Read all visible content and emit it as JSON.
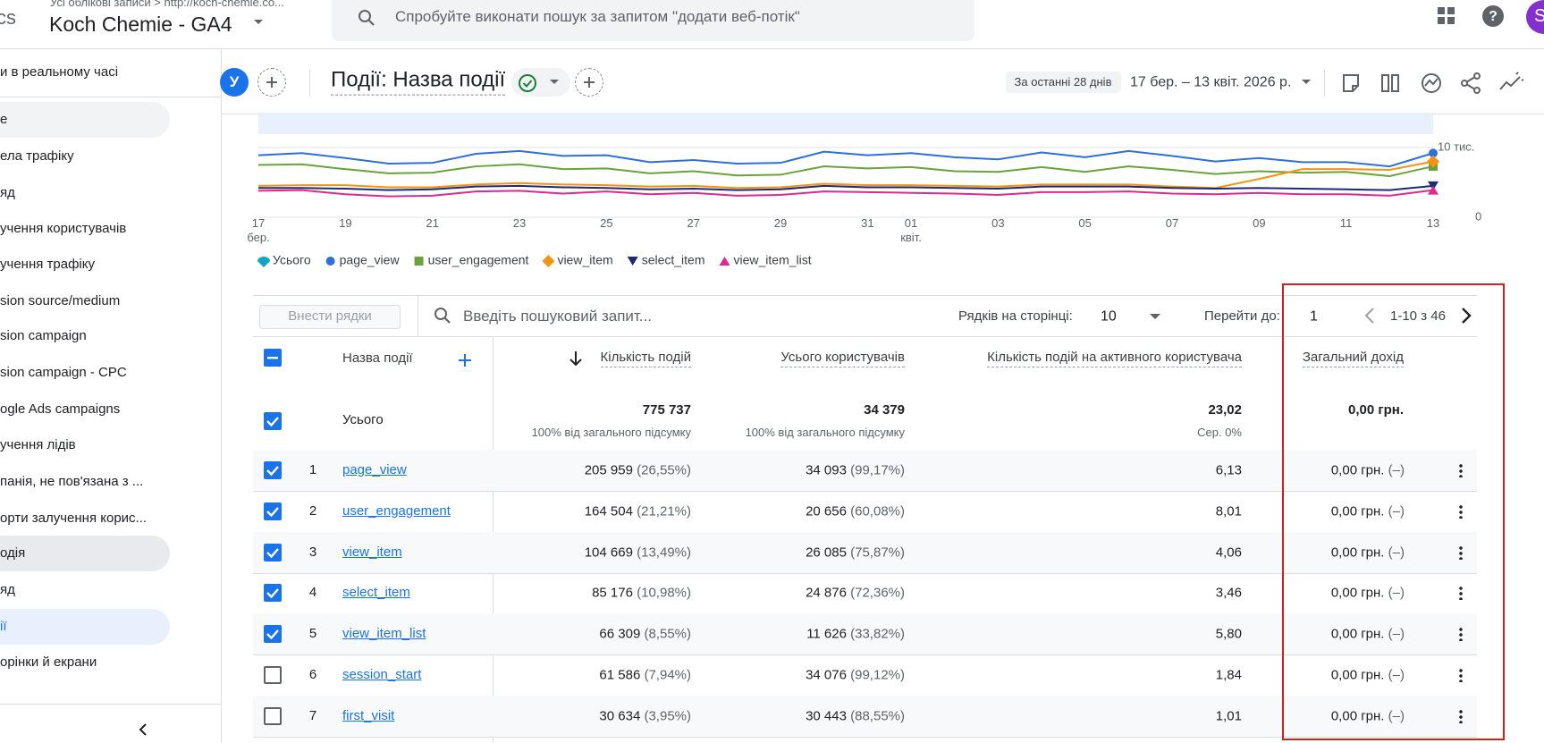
{
  "header": {
    "app_partial": "cs",
    "breadcrumb": "Усі облікові записи > http://koch-chemie.co...",
    "property": "Koch Chemie - GA4",
    "search_placeholder": "Спробуйте виконати пошук за запитом \"додати веб-потік\"",
    "avatar": "S"
  },
  "sidebar": {
    "items": [
      "и в реальному часі",
      "е",
      "ела трафіку",
      "яд",
      "учення користувачів",
      "учення трафіку",
      "sion source/medium",
      "sion campaign",
      "sion campaign - CPC",
      "ogle Ads campaigns",
      "учення лідів",
      "панія, не пов'язана з ...",
      "орти залучення корис...",
      "одія",
      "яд",
      "ії",
      "орінки й екрани"
    ]
  },
  "toolbar": {
    "segment": "У",
    "title": "Події: Назва події",
    "period_label": "За останні 28 днів",
    "period": "17 бер. – 13 квіт. 2026 р."
  },
  "chart_data": {
    "type": "line",
    "categories": [
      "17\nбер.",
      null,
      "19",
      null,
      "21",
      null,
      "23",
      null,
      "25",
      null,
      "27",
      null,
      "29",
      null,
      "31",
      "01\nквіт.",
      null,
      "03",
      null,
      "05",
      null,
      "07",
      null,
      "09",
      null,
      "11",
      null,
      "13"
    ],
    "series": [
      {
        "name": "Усього",
        "color": "#12a4c4",
        "marker": "drop",
        "values": [
          null,
          null,
          null,
          null,
          null,
          null,
          null,
          null,
          null,
          null,
          null,
          null,
          null,
          null,
          null,
          null,
          null,
          null,
          null,
          null,
          null,
          null,
          null,
          null,
          null,
          null,
          null,
          null
        ]
      },
      {
        "name": "page_view",
        "color": "#2f6fdc",
        "marker": "circle",
        "values": [
          8900,
          9200,
          8500,
          7700,
          7800,
          9100,
          9500,
          8800,
          8900,
          7900,
          8200,
          7700,
          7800,
          9400,
          8900,
          9200,
          8600,
          8300,
          9300,
          8600,
          9500,
          8800,
          8000,
          8500,
          7900,
          7900,
          7300,
          9200
        ]
      },
      {
        "name": "user_engagement",
        "color": "#6aa23c",
        "marker": "square",
        "values": [
          7500,
          7600,
          6900,
          6300,
          6400,
          7300,
          7600,
          6900,
          7000,
          6300,
          6600,
          6000,
          6100,
          7300,
          7000,
          7200,
          6600,
          6500,
          7200,
          6500,
          7300,
          6800,
          6200,
          6600,
          6400,
          6500,
          5900,
          7300
        ]
      },
      {
        "name": "view_item",
        "color": "#f29411",
        "marker": "diamond",
        "values": [
          4500,
          4600,
          4600,
          4300,
          4300,
          4700,
          4900,
          4700,
          4600,
          4400,
          4500,
          4200,
          4300,
          4800,
          4600,
          4600,
          4500,
          4400,
          4700,
          4700,
          4700,
          4400,
          4200,
          5500,
          6900,
          6900,
          6800,
          8000
        ]
      },
      {
        "name": "select_item",
        "color": "#1d2a78",
        "marker": "triangle-down",
        "values": [
          4200,
          4200,
          4100,
          3900,
          4000,
          4400,
          4500,
          4300,
          4200,
          4000,
          4100,
          3900,
          4000,
          4500,
          4300,
          4300,
          4200,
          4100,
          4400,
          4400,
          4400,
          4200,
          4100,
          4200,
          4100,
          4000,
          3900,
          4500
        ]
      },
      {
        "name": "view_item_list",
        "color": "#e0288f",
        "marker": "triangle-up",
        "values": [
          3800,
          3900,
          3300,
          3000,
          3100,
          3700,
          3800,
          3400,
          3700,
          3300,
          3500,
          3100,
          3200,
          3700,
          3600,
          3500,
          3400,
          3200,
          3600,
          3600,
          3700,
          3400,
          3300,
          3500,
          3300,
          3300,
          3100,
          3900
        ]
      }
    ],
    "ylim": [
      0,
      15000
    ],
    "yticks": [
      0,
      {
        "value": 10000,
        "label": "10 тис."
      }
    ],
    "grid": true
  },
  "table": {
    "add_rows": "Внести рядки",
    "search_placeholder": "Введіть пошуковий запит...",
    "rows_per_page_label": "Рядків на сторінці:",
    "rows_per_page": "10",
    "goto_label": "Перейти до:",
    "goto_value": "1",
    "range": "1-10 з 46",
    "columns": [
      "Назва події",
      "Кількість подій",
      "Усього користувачів",
      "Кількість подій на активного користувача",
      "Загальний дохід"
    ],
    "totals": {
      "label": "Усього",
      "events": "775 737",
      "events_note": "100% від загального підсумку",
      "users": "34 379",
      "users_note": "100% від загального підсумку",
      "per_user": "23,02",
      "per_user_note": "Сер. 0%",
      "revenue": "0,00 грн."
    },
    "rows": [
      {
        "index": "1",
        "name": "page_view",
        "events": "205 959",
        "events_pct": "(26,55%)",
        "users": "34 093",
        "users_pct": "(99,17%)",
        "per_user": "6,13",
        "revenue": "0,00 грн.",
        "revenue_pct": "(–)",
        "checked": true
      },
      {
        "index": "2",
        "name": "user_engagement",
        "events": "164 504",
        "events_pct": "(21,21%)",
        "users": "20 656",
        "users_pct": "(60,08%)",
        "per_user": "8,01",
        "revenue": "0,00 грн.",
        "revenue_pct": "(–)",
        "checked": true
      },
      {
        "index": "3",
        "name": "view_item",
        "events": "104 669",
        "events_pct": "(13,49%)",
        "users": "26 085",
        "users_pct": "(75,87%)",
        "per_user": "4,06",
        "revenue": "0,00 грн.",
        "revenue_pct": "(–)",
        "checked": true
      },
      {
        "index": "4",
        "name": "select_item",
        "events": "85 176",
        "events_pct": "(10,98%)",
        "users": "24 876",
        "users_pct": "(72,36%)",
        "per_user": "3,46",
        "revenue": "0,00 грн.",
        "revenue_pct": "(–)",
        "checked": true
      },
      {
        "index": "5",
        "name": "view_item_list",
        "events": "66 309",
        "events_pct": "(8,55%)",
        "users": "11 626",
        "users_pct": "(33,82%)",
        "per_user": "5,80",
        "revenue": "0,00 грн.",
        "revenue_pct": "(–)",
        "checked": true
      },
      {
        "index": "6",
        "name": "session_start",
        "events": "61 586",
        "events_pct": "(7,94%)",
        "users": "34 076",
        "users_pct": "(99,12%)",
        "per_user": "1,84",
        "revenue": "0,00 грн.",
        "revenue_pct": "(–)",
        "checked": false
      },
      {
        "index": "7",
        "name": "first_visit",
        "events": "30 634",
        "events_pct": "(3,95%)",
        "users": "30 443",
        "users_pct": "(88,55%)",
        "per_user": "1,01",
        "revenue": "0,00 грн.",
        "revenue_pct": "(–)",
        "checked": false
      }
    ]
  }
}
